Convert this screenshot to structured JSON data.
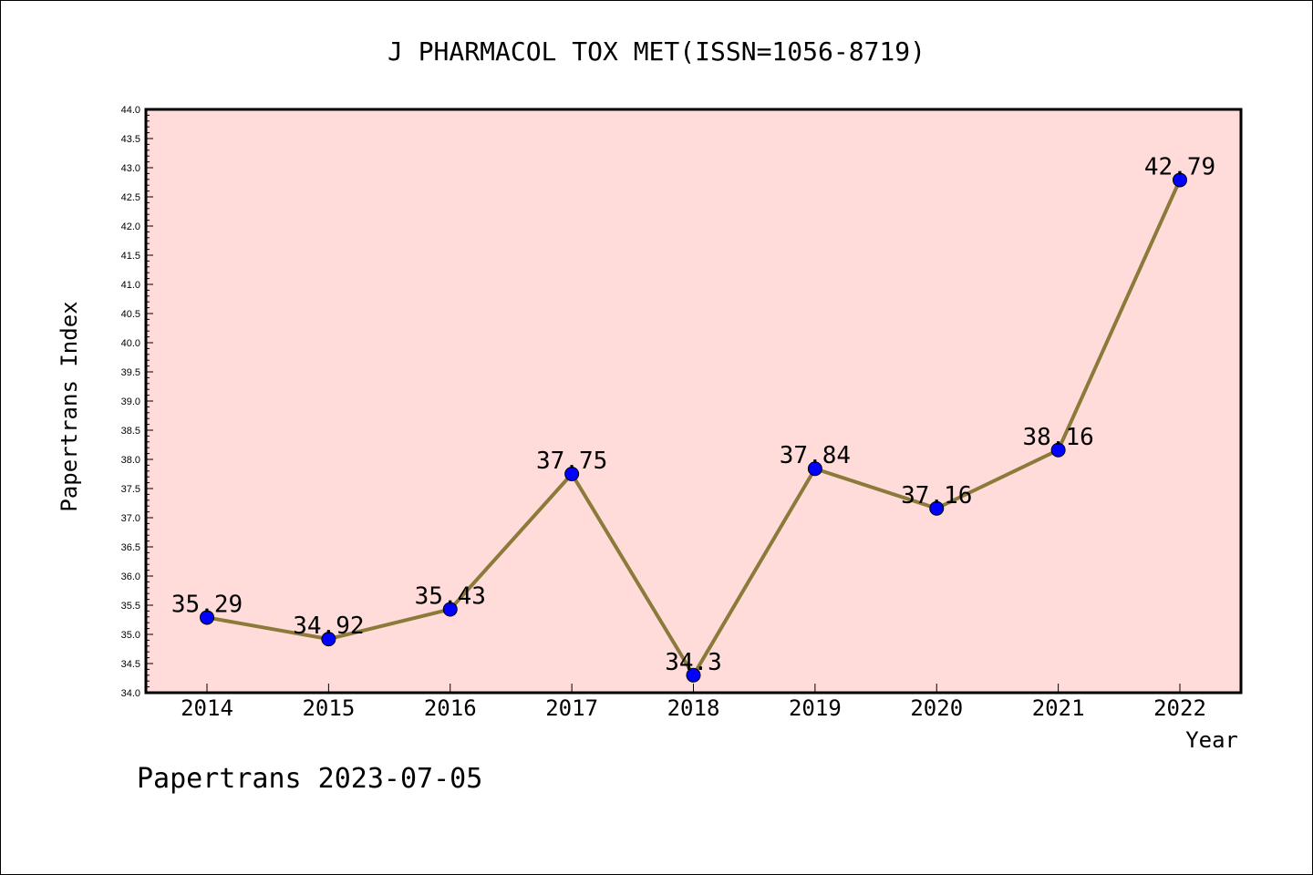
{
  "chart_data": {
    "type": "line",
    "title": "J PHARMACOL TOX MET(ISSN=1056-8719)",
    "xlabel": "Year",
    "ylabel": "Papertrans Index",
    "categories": [
      "2014",
      "2015",
      "2016",
      "2017",
      "2018",
      "2019",
      "2020",
      "2021",
      "2022"
    ],
    "values": [
      35.29,
      34.92,
      35.43,
      37.75,
      34.3,
      37.84,
      37.16,
      38.16,
      42.79
    ],
    "data_labels": [
      "35.29",
      "34.92",
      "35.43",
      "37.75",
      "34.3",
      "37.84",
      "37.16",
      "38.16",
      "42.79"
    ],
    "ylim": [
      34.0,
      44.0
    ],
    "yticks": [
      "34.0",
      "34.5",
      "35.0",
      "35.5",
      "36.0",
      "36.5",
      "37.0",
      "37.5",
      "38.0",
      "38.5",
      "39.0",
      "39.5",
      "40.0",
      "40.5",
      "41.0",
      "41.5",
      "42.0",
      "42.5",
      "43.0",
      "43.5",
      "44.0"
    ],
    "grid": false,
    "colors": {
      "plot_background": "#FFDCDA",
      "line": "#8B7A3A",
      "marker": "#0000FF"
    }
  },
  "footer": "Papertrans 2023-07-05"
}
